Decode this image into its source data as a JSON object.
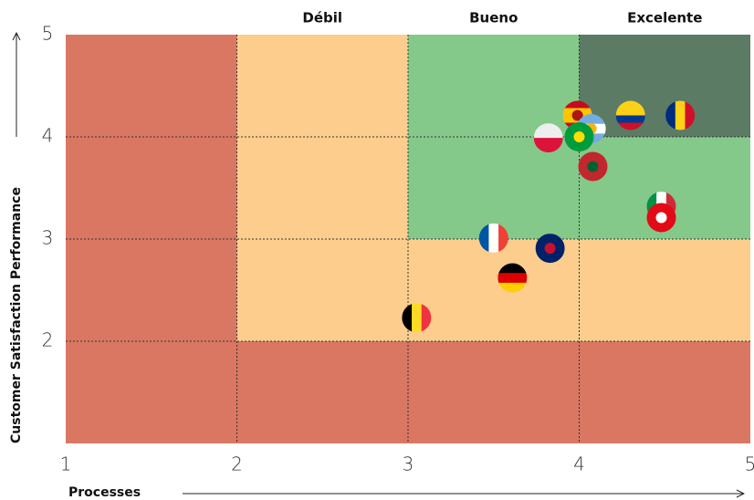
{
  "chart_data": {
    "type": "scatter",
    "xlabel": "Processes",
    "ylabel": "Customer Satisfaction Performance",
    "xlim": [
      1,
      5
    ],
    "ylim": [
      1,
      5
    ],
    "xticks": [
      1,
      2,
      3,
      4,
      5
    ],
    "yticks": [
      2,
      3,
      4,
      5
    ],
    "grid": true,
    "bands": [
      {
        "label": "Débil",
        "from": 2,
        "to": 3
      },
      {
        "label": "Bueno",
        "from": 3,
        "to": 4
      },
      {
        "label": "Excelente",
        "from": 4,
        "to": 5
      }
    ],
    "zones": [
      {
        "x": [
          1,
          5
        ],
        "y": [
          1,
          5
        ],
        "color": "#d97763"
      },
      {
        "x": [
          2,
          5
        ],
        "y": [
          2,
          5
        ],
        "color": "#fdcd8e"
      },
      {
        "x": [
          3,
          5
        ],
        "y": [
          3,
          5
        ],
        "color": "#84c98a"
      },
      {
        "x": [
          4,
          5
        ],
        "y": [
          4,
          5
        ],
        "color": "#5b7b65"
      }
    ],
    "x": [
      3.99,
      4.3,
      4.59,
      4.07,
      4.0,
      3.82,
      4.08,
      4.48,
      4.48,
      3.5,
      3.83,
      3.61,
      3.05
    ],
    "values": [
      4.21,
      4.21,
      4.21,
      4.08,
      4.0,
      3.99,
      3.71,
      3.32,
      3.21,
      3.01,
      2.91,
      2.62,
      2.23
    ],
    "flags": [
      {
        "dir": "h",
        "stripes": [
          "#c60b1e",
          "#ffc400",
          "#ffc400",
          "#c60b1e"
        ],
        "emblem": "#ad1519"
      },
      {
        "dir": "h",
        "stripes": [
          "#fcd116",
          "#fcd116",
          "#003893",
          "#ce1126"
        ]
      },
      {
        "dir": "v",
        "stripes": [
          "#002b7f",
          "#fcd116",
          "#ce1126"
        ]
      },
      {
        "dir": "h",
        "stripes": [
          "#74acdf",
          "#ffffff",
          "#74acdf"
        ],
        "emblem": "#f6b40e"
      },
      {
        "dir": "h",
        "stripes": [
          "#009b3a"
        ],
        "emblem": "#fedf00"
      },
      {
        "dir": "h",
        "stripes": [
          "#eeeeee",
          "#dc143c"
        ]
      },
      {
        "dir": "h",
        "stripes": [
          "#c1272d"
        ],
        "emblem": "#006233"
      },
      {
        "dir": "v",
        "stripes": [
          "#009246",
          "#ffffff",
          "#ce2b37"
        ]
      },
      {
        "dir": "h",
        "stripes": [
          "#e30a17"
        ],
        "emblem": "#ffffff"
      },
      {
        "dir": "v",
        "stripes": [
          "#0055a4",
          "#ffffff",
          "#ef4135"
        ]
      },
      {
        "dir": "h",
        "stripes": [
          "#012169"
        ],
        "emblem": "#c8102e"
      },
      {
        "dir": "h",
        "stripes": [
          "#000000",
          "#dd0000",
          "#ffce00"
        ]
      },
      {
        "dir": "v",
        "stripes": [
          "#000000",
          "#fdda24",
          "#ef3340"
        ]
      }
    ]
  }
}
